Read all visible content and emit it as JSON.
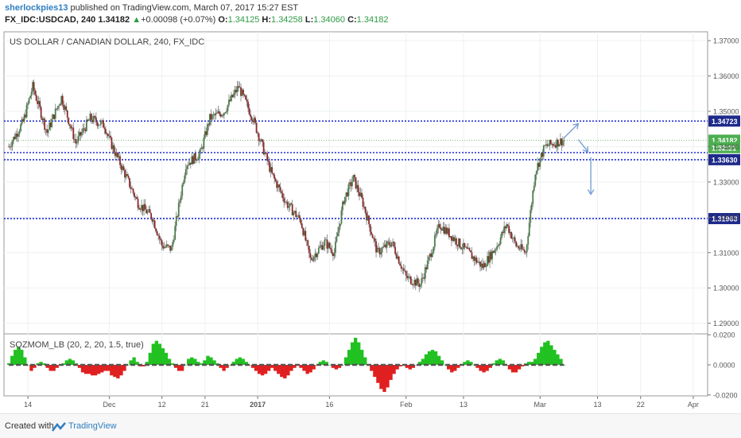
{
  "header": {
    "author": "sherlockpies13",
    "published_text": " published on TradingView.com, March 07, 2017 15:27 EST",
    "symbol": "FX_IDC:USDCAD, 240",
    "last_price": "1.34182",
    "change_arrow": "▲",
    "change": "+0.00098 (+0.07%)",
    "o_label": "O:",
    "o_value": "1.34125",
    "h_label": "H:",
    "h_value": "1.34258",
    "l_label": "L:",
    "l_value": "1.34060",
    "c_label": "C:",
    "c_value": "1.34182"
  },
  "chart_data": [
    {
      "type": "candlestick",
      "title": "US DOLLAR / CANADIAN DOLLAR, 240, FX_IDC",
      "y_ticks": [
        "1.37000",
        "1.36000",
        "1.35000",
        "1.34000",
        "1.33000",
        "1.32000",
        "1.31000",
        "1.30000",
        "1.29000"
      ],
      "ylim": [
        1.287,
        1.3725
      ],
      "x_ticks": [
        "14",
        "Dec",
        "12",
        "21",
        "2017",
        "16",
        "Feb",
        "13",
        "Mar",
        "13",
        "22",
        "Apr"
      ],
      "grid": true,
      "price_path": [
        {
          "date": "Nov 10",
          "price": 1.34
        },
        {
          "date": "Nov 13",
          "price": 1.347
        },
        {
          "date": "Nov 15",
          "price": 1.357
        },
        {
          "date": "Nov 18",
          "price": 1.344
        },
        {
          "date": "Nov 21",
          "price": 1.354
        },
        {
          "date": "Nov 24",
          "price": 1.341
        },
        {
          "date": "Nov 27",
          "price": 1.348
        },
        {
          "date": "Nov 30",
          "price": 1.346
        },
        {
          "date": "Dec 2",
          "price": 1.342
        },
        {
          "date": "Dec 5",
          "price": 1.333
        },
        {
          "date": "Dec 8",
          "price": 1.324
        },
        {
          "date": "Dec 11",
          "price": 1.32
        },
        {
          "date": "Dec 13",
          "price": 1.312
        },
        {
          "date": "Dec 15",
          "price": 1.311
        },
        {
          "date": "Dec 18",
          "price": 1.335
        },
        {
          "date": "Dec 21",
          "price": 1.338
        },
        {
          "date": "Dec 23",
          "price": 1.348
        },
        {
          "date": "Dec 26",
          "price": 1.35
        },
        {
          "date": "Dec 29",
          "price": 1.357
        },
        {
          "date": "Jan 1",
          "price": 1.348
        },
        {
          "date": "Jan 3",
          "price": 1.34
        },
        {
          "date": "Jan 5",
          "price": 1.332
        },
        {
          "date": "Jan 8",
          "price": 1.324
        },
        {
          "date": "Jan 11",
          "price": 1.319
        },
        {
          "date": "Jan 13",
          "price": 1.308
        },
        {
          "date": "Jan 16",
          "price": 1.313
        },
        {
          "date": "Jan 18",
          "price": 1.31
        },
        {
          "date": "Jan 20",
          "price": 1.325
        },
        {
          "date": "Jan 22",
          "price": 1.331
        },
        {
          "date": "Jan 24",
          "price": 1.324
        },
        {
          "date": "Jan 27",
          "price": 1.31
        },
        {
          "date": "Jan 30",
          "price": 1.313
        },
        {
          "date": "Feb 2",
          "price": 1.303
        },
        {
          "date": "Feb 5",
          "price": 1.301
        },
        {
          "date": "Feb 7",
          "price": 1.309
        },
        {
          "date": "Feb 9",
          "price": 1.318
        },
        {
          "date": "Feb 12",
          "price": 1.314
        },
        {
          "date": "Feb 15",
          "price": 1.31
        },
        {
          "date": "Feb 18",
          "price": 1.306
        },
        {
          "date": "Feb 21",
          "price": 1.312
        },
        {
          "date": "Feb 23",
          "price": 1.318
        },
        {
          "date": "Feb 25",
          "price": 1.312
        },
        {
          "date": "Feb 27",
          "price": 1.31
        },
        {
          "date": "Mar 1",
          "price": 1.333
        },
        {
          "date": "Mar 3",
          "price": 1.34
        },
        {
          "date": "Mar 5",
          "price": 1.341
        },
        {
          "date": "Mar 7",
          "price": 1.3418
        }
      ],
      "levels": [
        {
          "label": "1.34723",
          "value": 1.34723
        },
        {
          "label": "1.33630",
          "value": 1.3363
        },
        {
          "label": "1.31963",
          "value": 1.31963
        },
        {
          "value": 1.3383
        }
      ],
      "price_tags": [
        {
          "label": "1.34182",
          "value": 1.34182,
          "color": "#4caf50"
        },
        {
          "label": "1:32:21",
          "value": 1.3397,
          "color": "#4caf50"
        }
      ],
      "arrows": [
        {
          "from": {
            "date": "Mar 7",
            "price": 1.3425
          },
          "to": {
            "date": "Mar 10",
            "price": 1.3465
          }
        },
        {
          "from": {
            "date": "Mar 10",
            "price": 1.342
          },
          "to": {
            "date": "Mar 12",
            "price": 1.3385
          }
        },
        {
          "from": {
            "date": "Mar 12",
            "price": 1.337
          },
          "to": {
            "date": "Mar 12",
            "price": 1.3265
          }
        }
      ]
    },
    {
      "type": "histogram",
      "title": "SQZMOM_LB (20, 2, 20, 1.5, true)",
      "y_ticks": [
        "0.0200",
        "0.0000",
        "-0.0200"
      ],
      "ylim": [
        -0.0206,
        0.0206
      ],
      "series": [
        {
          "name": "momentum",
          "values": [
            0.001,
            0.006,
            0.01,
            0.012,
            0.01,
            0.005,
            0.0,
            -0.004,
            -0.002,
            0.001,
            0.002,
            0.001,
            -0.002,
            -0.004,
            -0.004,
            -0.002,
            0.0,
            0.001,
            0.003,
            0.004,
            0.003,
            0.001,
            -0.002,
            -0.005,
            -0.006,
            -0.006,
            -0.007,
            -0.007,
            -0.006,
            -0.005,
            -0.004,
            -0.004,
            -0.007,
            -0.008,
            -0.009,
            -0.007,
            -0.004,
            0.0,
            0.003,
            0.005,
            0.002,
            -0.001,
            -0.001,
            0.002,
            0.008,
            0.014,
            0.016,
            0.014,
            0.011,
            0.008,
            0.004,
            0.001,
            -0.002,
            -0.004,
            -0.004,
            0.0,
            0.004,
            0.005,
            0.004,
            0.002,
            0.001,
            0.003,
            0.006,
            0.005,
            0.003,
            0.001,
            -0.002,
            -0.004,
            -0.002,
            0.0,
            0.002,
            0.004,
            0.005,
            0.004,
            0.002,
            0.0,
            -0.002,
            -0.004,
            -0.006,
            -0.007,
            -0.006,
            -0.004,
            -0.002,
            -0.004,
            -0.006,
            -0.008,
            -0.009,
            -0.007,
            -0.004,
            -0.002,
            0.0,
            -0.002,
            -0.004,
            -0.006,
            -0.005,
            -0.003,
            0.0,
            0.002,
            0.003,
            0.002,
            0.0,
            -0.002,
            -0.003,
            -0.002,
            0.0,
            0.005,
            0.01,
            0.015,
            0.018,
            0.015,
            0.01,
            0.005,
            0.0,
            -0.004,
            -0.008,
            -0.012,
            -0.016,
            -0.018,
            -0.015,
            -0.01,
            -0.006,
            -0.003,
            -0.001,
            0.0,
            -0.002,
            -0.003,
            -0.002,
            0.0,
            0.002,
            0.004,
            0.007,
            0.009,
            0.01,
            0.009,
            0.006,
            0.003,
            0.0,
            -0.003,
            -0.005,
            -0.004,
            -0.002,
            0.0,
            0.002,
            0.003,
            0.002,
            0.0,
            -0.002,
            -0.004,
            -0.005,
            -0.004,
            -0.002,
            0.001,
            0.003,
            0.004,
            0.003,
            0.0,
            -0.003,
            -0.005,
            -0.005,
            -0.003,
            -0.001,
            0.001,
            0.002,
            0.002,
            0.004,
            0.008,
            0.012,
            0.015,
            0.016,
            0.013,
            0.01,
            0.007,
            0.004,
            0.0
          ]
        }
      ]
    }
  ],
  "footer": {
    "created_with": "Created with",
    "brand": "TradingView"
  },
  "colors": {
    "candle_up": "#4b7d4b",
    "candle_down": "#8a2a2a",
    "level_line": "#1f2bd6",
    "arrow": "#7b9fd6",
    "hist_pos": "#22c122",
    "hist_neg": "#e02020"
  }
}
